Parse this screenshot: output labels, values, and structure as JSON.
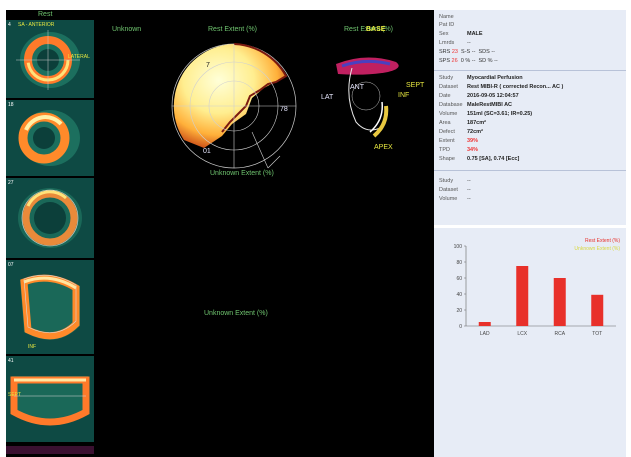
{
  "left_column": {
    "header": "Rest",
    "slice_labels": [
      "SA - ANTERIOR",
      "LATERAL",
      "SEPT",
      "INF"
    ],
    "slice_numbers": [
      "4",
      "18",
      "27",
      "07",
      "41"
    ]
  },
  "center": {
    "label_unknown_top": "Unknown",
    "polar_title": "Rest Extent (%)",
    "polar_values": {
      "top": "7",
      "right": "78",
      "bottom": "01"
    },
    "polar_bottom_label": "Unknown Extent (%)",
    "lower_label": "Unknown Extent (%)"
  },
  "view3d": {
    "title": "Rest Extent (%)",
    "overlay": "BASE",
    "labels": {
      "lat": "LAT",
      "ant": "ANT",
      "inf": "INF",
      "sept": "SEPT",
      "apex": "APEX"
    }
  },
  "patient": {
    "name_label": "Name",
    "id_label": "Pat ID",
    "sex_label": "Sex",
    "sex_value": "MALE",
    "lmrd_label": "Lmrds",
    "lmrd_value": "--",
    "srs_label": "SRS",
    "srs_value": "23",
    "sds_label_a": "S-S",
    "sds_value_a": "--",
    "sds_label_b": "SDS",
    "sds_value_b": "--",
    "sps_label": "SPS",
    "sps_value": "26",
    "pct_a": "0 %",
    "pct_a2": "--",
    "pct_b": "SD %",
    "pct_b2": "--"
  },
  "study": {
    "study_label": "Study",
    "study_value": "Myocardial Perfusion",
    "dataset_label": "Dataset",
    "dataset_value": "Rest MIBI-R ( corrected Recon... AC )",
    "date_label": "Date",
    "date_value": "2016-09-05 12:04:57",
    "database_label": "Database",
    "database_value": "MaleRestMIBI AC",
    "volume_label": "Volume",
    "volume_value": "151ml (SC=3.61; IR=0.25)",
    "area_label": "Area",
    "area_value": "187cm²",
    "defect_label": "Defect",
    "defect_value": "72cm²",
    "extent_label": "Extent",
    "extent_value": "39%",
    "tpd_label": "TPD",
    "tpd_value": "34%",
    "shape_label": "Shape",
    "shape_value": "0.75 [SA], 0.74 [Ecc]"
  },
  "study2": {
    "study_label": "Study",
    "study_value": "--",
    "dataset_label": "Dataset",
    "dataset_value": "--",
    "volume_label": "Volume",
    "volume_value": "--"
  },
  "colors": {
    "bar": "#e8302a",
    "accent_green": "#6fc46f",
    "panel_bg": "#e7ecf6"
  },
  "chart_data": {
    "type": "bar",
    "categories": [
      "LAD",
      "LCX",
      "RCA",
      "TOT"
    ],
    "values": [
      5,
      75,
      60,
      39
    ],
    "ylim": [
      0,
      100
    ],
    "yticks": [
      "0",
      "20",
      "40",
      "60",
      "80",
      "100"
    ],
    "series": [
      {
        "name": "Rest Extent (%)",
        "values": [
          5,
          75,
          60,
          39
        ]
      }
    ],
    "legend_secondary": "Unknown Extent (%)"
  }
}
